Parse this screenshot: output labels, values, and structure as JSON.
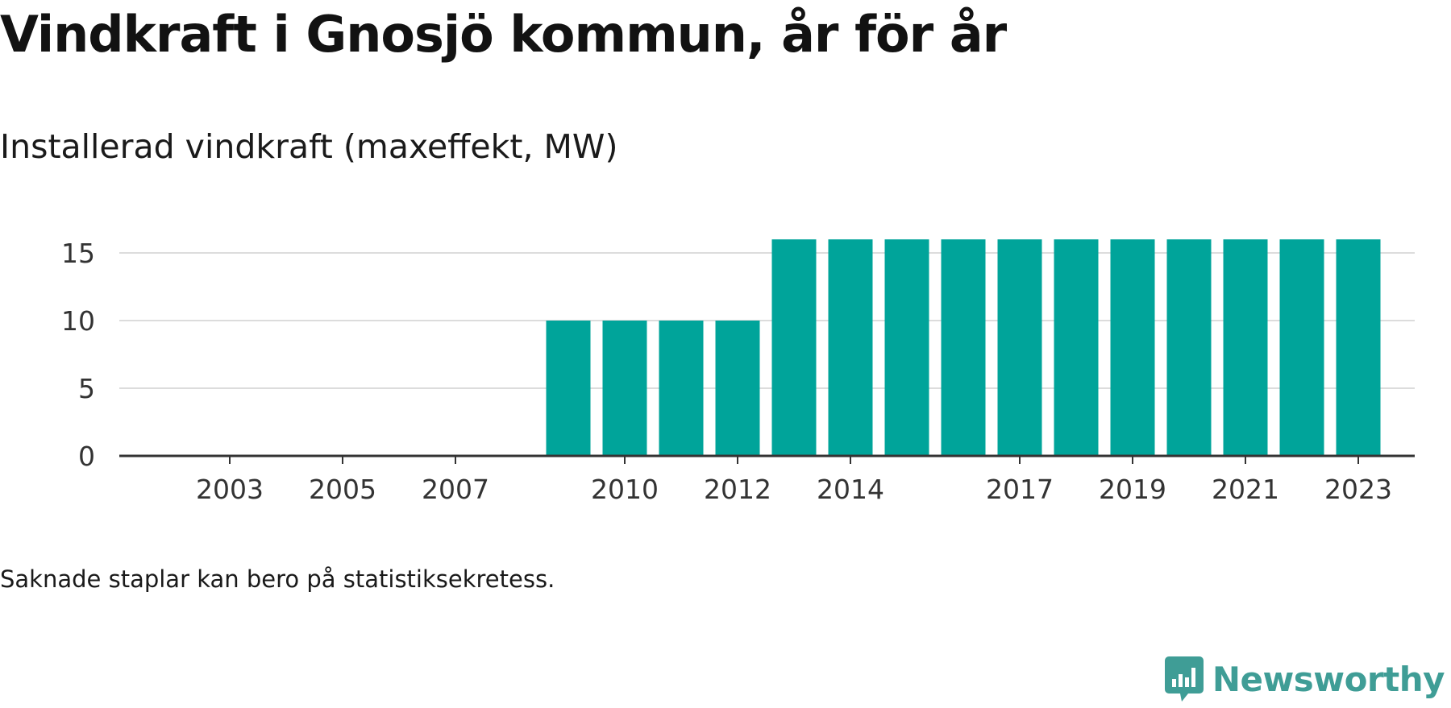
{
  "title": "Vindkraft i Gnosjö kommun, år för år",
  "subtitle": "Installerad vindkraft (maxeffekt, MW)",
  "note": "Saknade staplar kan bero på statistiksekretess.",
  "brand": {
    "name": "Newsworthy",
    "icon": "newsworthy-bar-chart-logo-icon",
    "color": "#3f9d96"
  },
  "chart_data": {
    "type": "bar",
    "title": "Vindkraft i Gnosjö kommun, år för år",
    "subtitle": "Installerad vindkraft (maxeffekt, MW)",
    "xlabel": "",
    "ylabel": "",
    "categories": [
      "2002",
      "2003",
      "2004",
      "2005",
      "2006",
      "2007",
      "2008",
      "2009",
      "2010",
      "2011",
      "2012",
      "2013",
      "2014",
      "2015",
      "2016",
      "2017",
      "2018",
      "2019",
      "2020",
      "2021",
      "2022",
      "2023"
    ],
    "values": [
      null,
      null,
      null,
      null,
      null,
      null,
      null,
      10,
      10,
      10,
      10,
      16,
      16,
      16,
      16,
      16,
      16,
      16,
      16,
      16,
      16,
      16
    ],
    "x_tick_labels": [
      "2003",
      "2005",
      "2007",
      "2010",
      "2012",
      "2014",
      "2017",
      "2019",
      "2021",
      "2023"
    ],
    "y_ticks": [
      0,
      5,
      10,
      15
    ],
    "ylim": [
      0,
      16
    ],
    "grid": true,
    "bar_color": "#00a49a"
  }
}
